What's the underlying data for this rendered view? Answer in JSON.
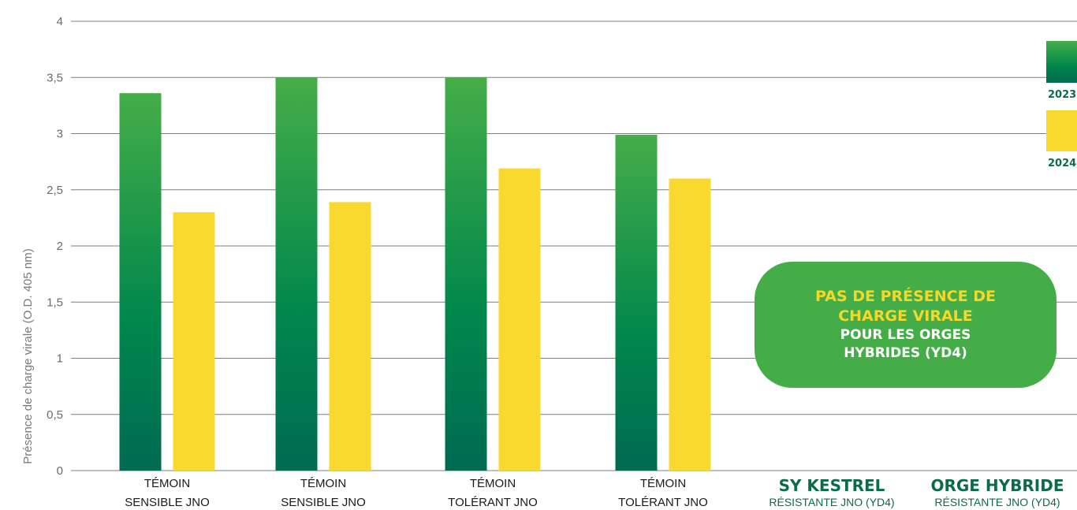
{
  "chart_data": {
    "type": "bar",
    "title": "",
    "ylabel": "Présence de charge virale (O.D. 405 nm)",
    "ylim": [
      0,
      4
    ],
    "y_ticks": [
      "0",
      "0,5",
      "1",
      "1,5",
      "2",
      "2,5",
      "3",
      "3,5",
      "4"
    ],
    "grid": true,
    "legend_position": "right",
    "categories": [
      {
        "line1": "TÉMOIN",
        "line2": "SENSIBLE JNO"
      },
      {
        "line1": "TÉMOIN",
        "line2": "SENSIBLE JNO"
      },
      {
        "line1": "TÉMOIN",
        "line2": "TOLÉRANT JNO"
      },
      {
        "line1": "TÉMOIN",
        "line2": "TOLÉRANT JNO"
      },
      {
        "line1": "SY KESTREL",
        "line2": "RÉSISTANTE JNO (YD4)"
      },
      {
        "line1": "ORGE HYBRIDE",
        "line2": "RÉSISTANTE JNO (YD4)"
      }
    ],
    "series": [
      {
        "name": "2023",
        "color_top": "#45ad48",
        "color_bottom": "#006a52",
        "values": [
          3.36,
          3.5,
          3.5,
          2.99,
          null,
          null
        ]
      },
      {
        "name": "2024",
        "color": "#f9d82f",
        "values": [
          2.3,
          2.39,
          2.69,
          2.6,
          null,
          null
        ]
      }
    ],
    "legend": [
      "2023",
      "2024"
    ]
  },
  "callout": {
    "line1": "PAS DE PRÉSENCE DE",
    "line2": "CHARGE VIRALE",
    "line3": "POUR LES ORGES",
    "line4": "HYBRIDES (YD4)"
  },
  "colors": {
    "grid": "#7f7f7f",
    "green_top": "#45ad48",
    "green_bottom": "#006a52",
    "yellow": "#f9d82f",
    "dark_green_text": "#0d6b4a",
    "callout_bg": "#45ad48",
    "callout_yellow": "#f5d829"
  }
}
